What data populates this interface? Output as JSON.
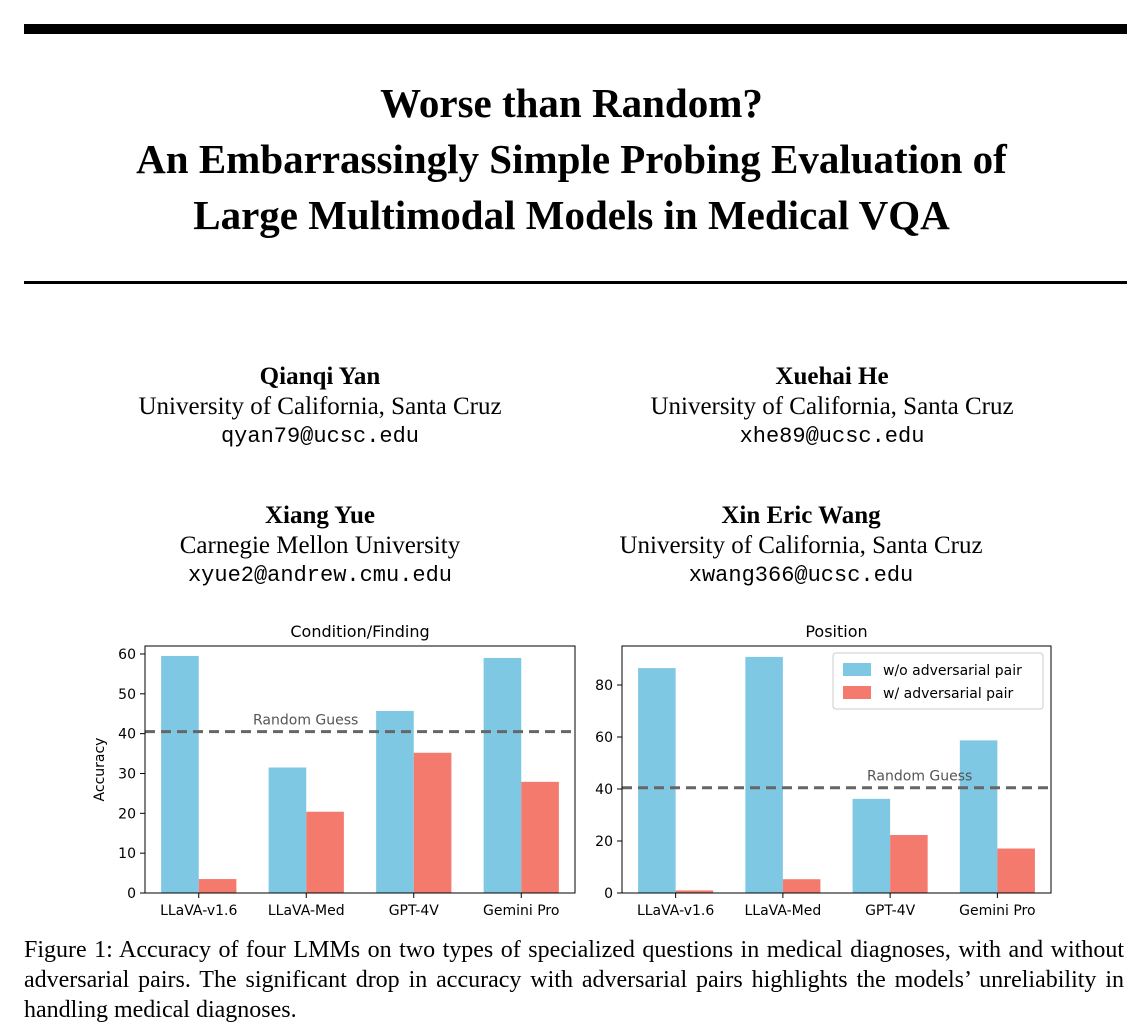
{
  "paper": {
    "title_lines": [
      "Worse than Random?",
      "An Embarrassingly Simple Probing Evaluation of",
      "Large Multimodal Models in Medical VQA"
    ],
    "authors": [
      {
        "name": "Qianqi Yan",
        "affiliation": "University of California, Santa Cruz",
        "email": "qyan79@ucsc.edu"
      },
      {
        "name": "Xuehai He",
        "affiliation": "University of California, Santa Cruz",
        "email": "xhe89@ucsc.edu"
      },
      {
        "name": "Xiang Yue",
        "affiliation": "Carnegie Mellon University",
        "email": "xyue2@andrew.cmu.edu"
      },
      {
        "name": "Xin Eric Wang",
        "affiliation": "University of California, Santa Cruz",
        "email": "xwang366@ucsc.edu"
      }
    ],
    "caption": "Figure 1: Accuracy of four LMMs on two types of specialized questions in medical diagnoses, with and without adversarial pairs. The significant drop in accuracy with adversarial pairs highlights the models’ unreliability in handling medical diagnoses."
  },
  "chart_data": [
    {
      "type": "bar",
      "title": "Condition/Finding",
      "xlabel": "",
      "ylabel": "Accuracy",
      "categories": [
        "LLaVA-v1.6",
        "LLaVA-Med",
        "GPT-4V",
        "Gemini Pro"
      ],
      "series": [
        {
          "name": "w/o adversarial pair",
          "color": "#7ec8e3",
          "values": [
            59.5,
            31.5,
            45.7,
            59.0
          ]
        },
        {
          "name": "w/ adversarial pair",
          "color": "#f47a6e",
          "values": [
            3.5,
            20.4,
            35.2,
            27.9
          ]
        }
      ],
      "ylim": [
        0,
        62
      ],
      "yticks": [
        0,
        10,
        20,
        30,
        40,
        50,
        60
      ],
      "reference_line": {
        "value": 40.5,
        "label": "Random Guess"
      },
      "legend": "none",
      "grid": false
    },
    {
      "type": "bar",
      "title": "Position",
      "xlabel": "",
      "ylabel": "",
      "categories": [
        "LLaVA-v1.6",
        "LLaVA-Med",
        "GPT-4V",
        "Gemini Pro"
      ],
      "series": [
        {
          "name": "w/o adversarial pair",
          "color": "#7ec8e3",
          "values": [
            86.5,
            90.8,
            36.2,
            58.7
          ]
        },
        {
          "name": "w/ adversarial pair",
          "color": "#f47a6e",
          "values": [
            1.0,
            5.3,
            22.3,
            17.1
          ]
        }
      ],
      "ylim": [
        0,
        95
      ],
      "yticks": [
        0,
        20,
        40,
        60,
        80
      ],
      "reference_line": {
        "value": 40.5,
        "label": "Random Guess"
      },
      "legend": "top-right",
      "grid": false
    }
  ]
}
